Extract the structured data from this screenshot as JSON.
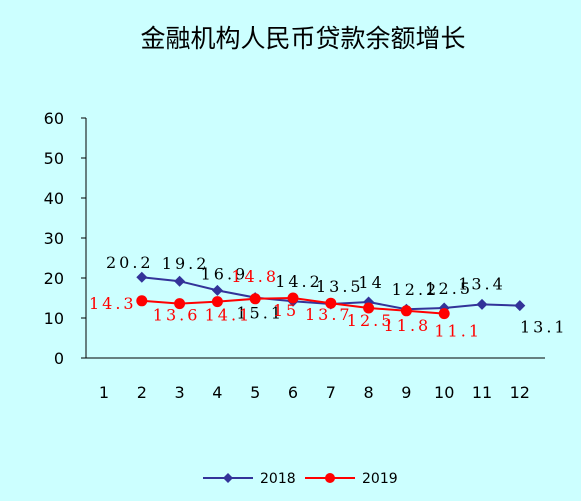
{
  "chart_data": {
    "type": "line",
    "title": "金融机构人民币贷款余额增长",
    "xlabel": "",
    "ylabel": "",
    "x": [
      1,
      2,
      3,
      4,
      5,
      6,
      7,
      8,
      9,
      10,
      11,
      12
    ],
    "categories": [
      "1",
      "2",
      "3",
      "4",
      "5",
      "6",
      "7",
      "8",
      "9",
      "10",
      "11",
      "12"
    ],
    "ylim": [
      0,
      60
    ],
    "yticks": [
      "0",
      "10",
      "20",
      "30",
      "40",
      "50",
      "60"
    ],
    "grid": false,
    "legend_position": "bottom",
    "series": [
      {
        "name": "2018",
        "color": "#333399",
        "marker": "diamond",
        "values": [
          null,
          20.2,
          19.2,
          16.9,
          15.1,
          14.2,
          13.5,
          14,
          12.2,
          12.5,
          13.4,
          13.1
        ],
        "labels": [
          null,
          "20.2",
          "19.2",
          "16.9",
          "15.1",
          "14.2",
          "13.5",
          "14",
          "12.2",
          "12.5",
          "13.4",
          "13.1"
        ]
      },
      {
        "name": "2019",
        "color": "#ff0000",
        "marker": "circle",
        "values": [
          null,
          14.3,
          13.6,
          14.1,
          14.8,
          15,
          13.7,
          12.5,
          11.8,
          11.1,
          null,
          null
        ],
        "labels": [
          null,
          "14.3",
          "13.6",
          "14.1",
          "14.8",
          "15",
          "13.7",
          "12.5",
          "11.8",
          "11.1",
          null,
          null
        ]
      }
    ]
  }
}
